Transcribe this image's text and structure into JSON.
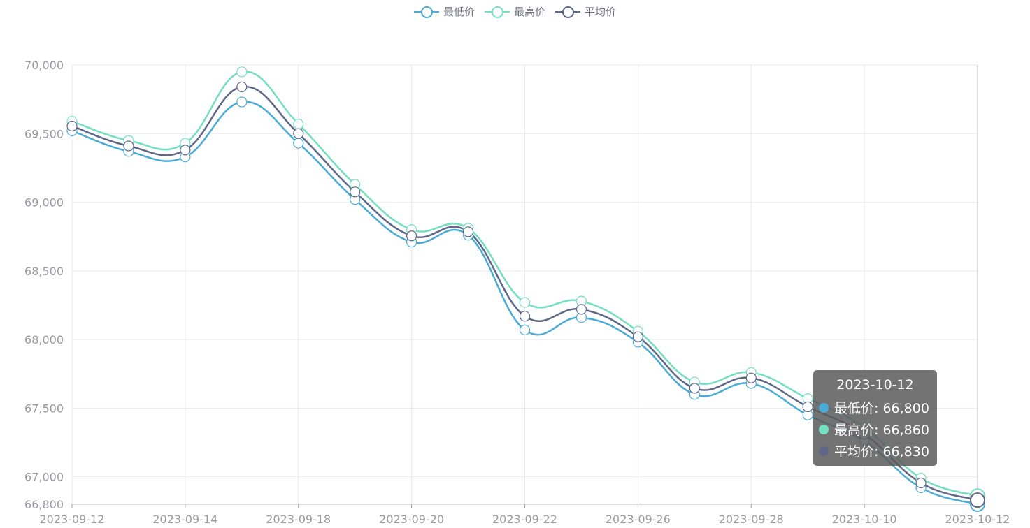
{
  "colors": {
    "low": "#4aabd6",
    "high": "#73dfc0",
    "avg": "#5f6788",
    "grid": "#e9e9ec",
    "axis": "#999aa0"
  },
  "legend": [
    {
      "name": "最低价",
      "color": "#4aabd6"
    },
    {
      "name": "最高价",
      "color": "#73dfc0"
    },
    {
      "name": "平均价",
      "color": "#5f6788"
    }
  ],
  "tooltip": {
    "date": "2023-10-12",
    "rows": [
      {
        "label": "最低价: 66,800",
        "color": "#4aabd6"
      },
      {
        "label": "最高价: 66,860",
        "color": "#73dfc0"
      },
      {
        "label": "平均价: 66,830",
        "color": "#5f6788"
      }
    ]
  },
  "chart_data": {
    "type": "line",
    "x": [
      "2023-09-12",
      "2023-09-13",
      "2023-09-14",
      "2023-09-15",
      "2023-09-18",
      "2023-09-19",
      "2023-09-20",
      "2023-09-21",
      "2023-09-22",
      "2023-09-25",
      "2023-09-26",
      "2023-09-27",
      "2023-09-28",
      "2023-10-09",
      "2023-10-10",
      "2023-10-11",
      "2023-10-12"
    ],
    "x_tick_labels": [
      "2023-09-12",
      "2023-09-14",
      "2023-09-18",
      "2023-09-20",
      "2023-09-22",
      "2023-09-26",
      "2023-09-28",
      "2023-10-10",
      "2023-10-12"
    ],
    "y_tick_labels": [
      "66,800",
      "67,000",
      "67,500",
      "68,000",
      "68,500",
      "69,000",
      "69,500",
      "70,000"
    ],
    "y_ticks": [
      66800,
      67000,
      67500,
      68000,
      68500,
      69000,
      69500,
      70000
    ],
    "ylim": [
      66800,
      70000
    ],
    "grid": true,
    "legend_position": "top-center",
    "series": [
      {
        "name": "最低价",
        "values": [
          69520,
          69370,
          69330,
          69730,
          69430,
          69020,
          68710,
          68760,
          68070,
          68160,
          67980,
          67600,
          67680,
          67450,
          67260,
          66920,
          66800
        ]
      },
      {
        "name": "最高价",
        "values": [
          69590,
          69450,
          69430,
          69950,
          69570,
          69130,
          68800,
          68810,
          68270,
          68280,
          68060,
          67690,
          67760,
          67570,
          67360,
          66990,
          66860
        ]
      },
      {
        "name": "平均价",
        "values": [
          69555,
          69410,
          69380,
          69840,
          69500,
          69075,
          68755,
          68785,
          68170,
          68220,
          68020,
          67645,
          67720,
          67510,
          67310,
          66955,
          66830
        ]
      }
    ]
  }
}
